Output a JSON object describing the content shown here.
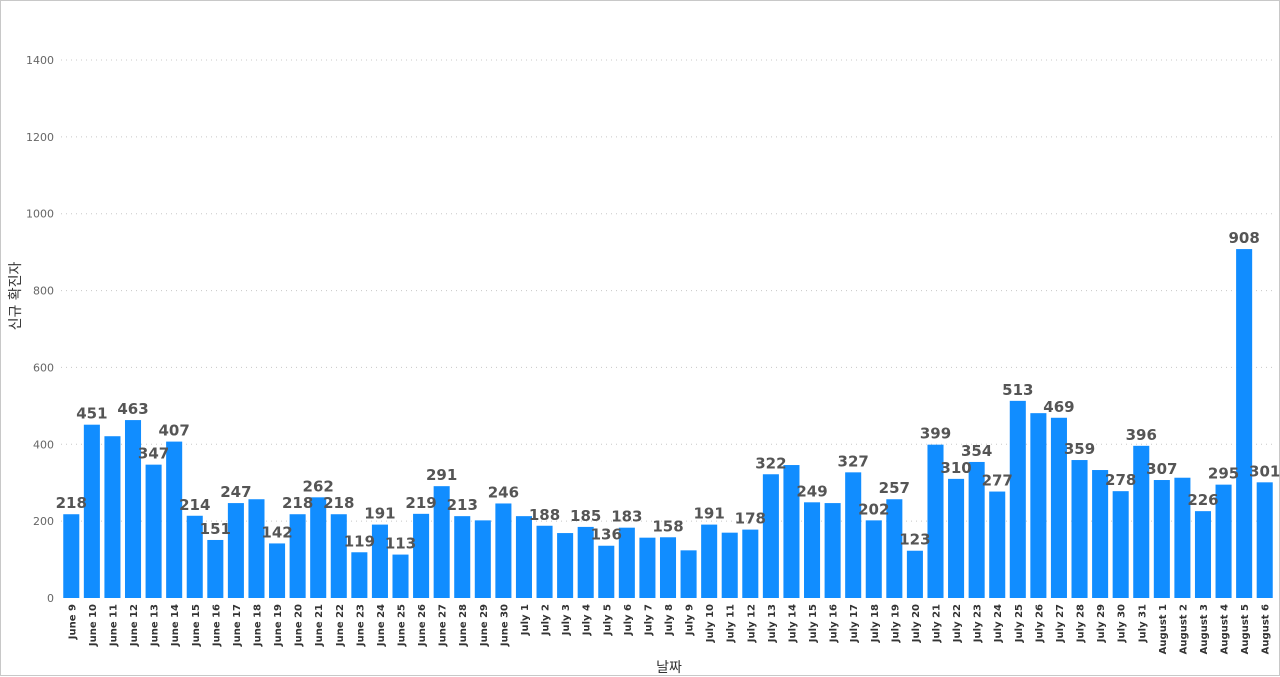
{
  "chart_data": {
    "type": "bar",
    "xlabel": "날짜",
    "ylabel": "신규 확진자",
    "ylim": [
      0,
      1400
    ],
    "yticks": [
      0,
      200,
      400,
      600,
      800,
      1000,
      1200,
      1400
    ],
    "grid": true,
    "legend": "none",
    "bar_color": "#118dff",
    "categories": [
      "June 9",
      "June 10",
      "June 11",
      "June 12",
      "June 13",
      "June 14",
      "June 15",
      "June 16",
      "June 17",
      "June 18",
      "June 19",
      "June 20",
      "June 21",
      "June 22",
      "June 23",
      "June 24",
      "June 25",
      "June 26",
      "June 27",
      "June 28",
      "June 29",
      "June 30",
      "July 1",
      "July 2",
      "July 3",
      "July 4",
      "July 5",
      "July 6",
      "July 7",
      "July 8",
      "July 9",
      "July 10",
      "July 11",
      "July 12",
      "July 13",
      "July 14",
      "July 15",
      "July 16",
      "July 17",
      "July 18",
      "July 19",
      "July 20",
      "July 21",
      "July 22",
      "July 23",
      "July 24",
      "July 25",
      "July 26",
      "July 27",
      "July 28",
      "July 29",
      "July 30",
      "July 31",
      "August 1",
      "August 2",
      "August 3",
      "August 4",
      "August 5",
      "August 6"
    ],
    "values": [
      218,
      451,
      421,
      463,
      347,
      407,
      214,
      151,
      247,
      257,
      142,
      218,
      262,
      218,
      119,
      191,
      113,
      219,
      291,
      213,
      202,
      246,
      213,
      188,
      169,
      185,
      136,
      183,
      157,
      158,
      124,
      191,
      170,
      178,
      322,
      346,
      249,
      247,
      327,
      202,
      257,
      123,
      399,
      310,
      354,
      277,
      513,
      481,
      469,
      359,
      333,
      278,
      396,
      307,
      313,
      226,
      295,
      908,
      301
    ],
    "data_labels": [
      "218",
      "451",
      "",
      "463",
      "347",
      "407",
      "214",
      "151",
      "247",
      "",
      "142",
      "218",
      "262",
      "218",
      "119",
      "191",
      "113",
      "219",
      "291",
      "213",
      "",
      "246",
      "",
      "188",
      "",
      "185",
      "136",
      "183",
      "",
      "158",
      "",
      "191",
      "",
      "178",
      "322",
      "",
      "249",
      "",
      "327",
      "202",
      "257",
      "123",
      "399",
      "310",
      "354",
      "277",
      "513",
      "",
      "469",
      "359",
      "",
      "278",
      "396",
      "307",
      "",
      "226",
      "295",
      "908",
      "301"
    ]
  }
}
